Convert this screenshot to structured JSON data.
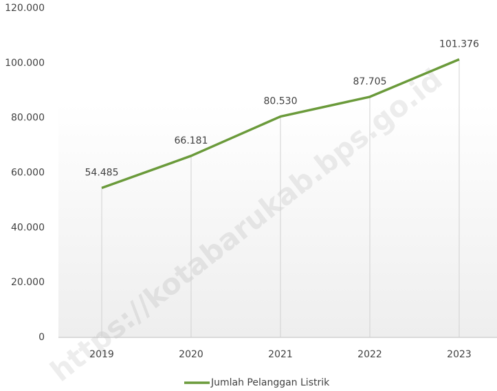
{
  "chart_data": {
    "type": "line",
    "categories": [
      "2019",
      "2020",
      "2021",
      "2022",
      "2023"
    ],
    "series": [
      {
        "name": "Jumlah Pelanggan Listrik",
        "color": "#6a9a3a",
        "values": [
          54485,
          66181,
          80530,
          87705,
          101376
        ],
        "value_labels": [
          "54.485",
          "66.181",
          "80.530",
          "87.705",
          "101.376"
        ]
      }
    ],
    "ylim": [
      0,
      120000
    ],
    "yticks": [
      0,
      {
        "value": 20000,
        "label": "20.000"
      },
      {
        "value": 40000,
        "label": "40.000"
      },
      {
        "value": 60000,
        "label": "60.000"
      },
      {
        "value": 80000,
        "label": "80.000"
      },
      {
        "value": 100000,
        "label": "100.000"
      },
      {
        "value": 120000,
        "label": "120.000"
      }
    ],
    "grid": false,
    "legend": "bottom",
    "watermark": "https://kotabarukab.bps.go.id"
  }
}
